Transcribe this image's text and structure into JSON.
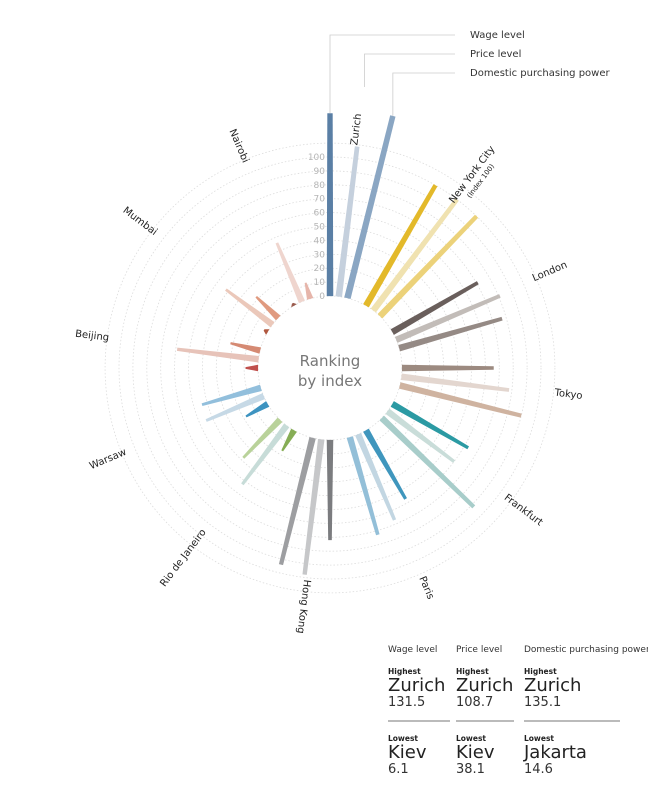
{
  "chart_data": {
    "type": "radial-bar",
    "title": "Ranking by index",
    "center_label": [
      "Ranking",
      "by index"
    ],
    "series": [
      "Wage level",
      "Price level",
      "Domestic purchasing power"
    ],
    "radial_ticks": [
      "0",
      "10",
      "20",
      "30",
      "40",
      "50",
      "60",
      "70",
      "80",
      "90",
      "100"
    ],
    "axis_range": [
      0,
      100
    ],
    "cities": [
      {
        "name": "Zurich",
        "values": [
          131.5,
          108.7,
          135.1
        ],
        "colors": [
          "#5a7fa5",
          "#c5d0dd",
          "#8aa6c3"
        ]
      },
      {
        "name": "New York City",
        "sub": "(Index 100)",
        "values": [
          100,
          100,
          100
        ],
        "colors": [
          "#e3b92a",
          "#f0e2b0",
          "#ecd27a"
        ]
      },
      {
        "name": "London",
        "values": [
          71,
          81,
          77
        ],
        "colors": [
          "#6a5f5c",
          "#c2bcb8",
          "#958a85"
        ]
      },
      {
        "name": "Tokyo",
        "values": [
          66,
          78,
          90
        ],
        "colors": [
          "#9c8a80",
          "#e3d6cf",
          "#cfb3a0"
        ]
      },
      {
        "name": "Frankfurt",
        "values": [
          63,
          60,
          92
        ],
        "colors": [
          "#2b9aa3",
          "#c9ddd9",
          "#a8cdca"
        ]
      },
      {
        "name": "Paris",
        "values": [
          57,
          67,
          73
        ],
        "colors": [
          "#3f96bd",
          "#c2d6e2",
          "#93bfd8"
        ]
      },
      {
        "name": "Hong Kong",
        "values": [
          72,
          98,
          94
        ],
        "colors": [
          "#7b7c7f",
          "#c6c7c9",
          "#9d9ea1"
        ]
      },
      {
        "name": "Rio de Janeiro",
        "values": [
          17,
          53,
          38
        ],
        "colors": [
          "#86ad55",
          "#c7dcd8",
          "#b9d29a"
        ]
      },
      {
        "name": "Warsaw",
        "values": [
          18,
          45,
          44
        ],
        "colors": [
          "#3d93c0",
          "#c6d9e6",
          "#92bfdc"
        ]
      },
      {
        "name": "Beijing",
        "values": [
          9,
          59,
          22
        ],
        "colors": [
          "#c0504d",
          "#e7c3b9",
          "#d58a73"
        ]
      },
      {
        "name": "Mumbai",
        "values": [
          3,
          42,
          22
        ],
        "colors": [
          "#b0583f",
          "#ebc8ba",
          "#e09a7f"
        ]
      },
      {
        "name": "Nairobi",
        "values": [
          2,
          46,
          12
        ],
        "colors": [
          "#9b5c4e",
          "#efd5ce",
          "#e6b5aa"
        ]
      }
    ]
  },
  "summary": {
    "columns": [
      {
        "header": "Wage level",
        "high_label": "Highest",
        "high_city": "Zurich",
        "high_value": "131.5",
        "low_label": "Lowest",
        "low_city": "Kiev",
        "low_value": "6.1"
      },
      {
        "header": "Price level",
        "high_label": "Highest",
        "high_city": "Zurich",
        "high_value": "108.7",
        "low_label": "Lowest",
        "low_city": "Kiev",
        "low_value": "38.1"
      },
      {
        "header": "Domestic purchasing power",
        "high_label": "Highest",
        "high_city": "Zurich",
        "high_value": "135.1",
        "low_label": "Lowest",
        "low_city": "Jakarta",
        "low_value": "14.6"
      }
    ]
  }
}
